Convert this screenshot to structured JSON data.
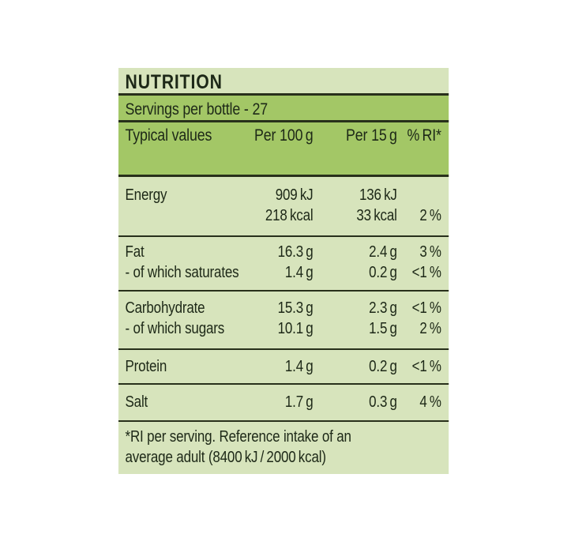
{
  "label": {
    "title": "NUTRITION",
    "servings": "Servings per bottle - 27",
    "columns": {
      "typical_values": "Typical values",
      "per_100g": "Per 100 g",
      "per_15g": "Per 15 g",
      "ri": "% RI*"
    },
    "energy": {
      "label": "Energy",
      "per100_kj": "909 kJ",
      "per100_kcal": "218 kcal",
      "per15_kj": "136 kJ",
      "per15_kcal": "33 kcal",
      "ri": "2 %"
    },
    "fat": {
      "label": "Fat",
      "per100": "16.3 g",
      "per15": "2.4 g",
      "ri": "3 %"
    },
    "saturates": {
      "label": "- of which saturates",
      "per100": "1.4 g",
      "per15": "0.2 g",
      "ri": "<1 %"
    },
    "carbohydrate": {
      "label": "Carbohydrate",
      "per100": "15.3 g",
      "per15": "2.3 g",
      "ri": "<1 %"
    },
    "sugars": {
      "label": "- of which sugars",
      "per100": "10.1 g",
      "per15": "1.5 g",
      "ri": "2 %"
    },
    "protein": {
      "label": "Protein",
      "per100": "1.4 g",
      "per15": "0.2 g",
      "ri": "<1 %"
    },
    "salt": {
      "label": "Salt",
      "per100": "1.7 g",
      "per15": "0.3 g",
      "ri": "4 %"
    },
    "footnote_line1": "*RI per serving. Reference intake of an",
    "footnote_line2": "average adult (8400 kJ / 2000 kcal)",
    "colors": {
      "band_light": "#d7e4bc",
      "band_medium": "#a3c766",
      "text": "#1d2817",
      "rule": "#28301b"
    }
  }
}
